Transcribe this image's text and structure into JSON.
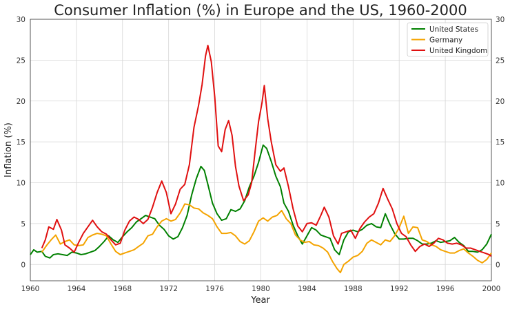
{
  "chart_data": {
    "type": "line",
    "title": "Consumer Inflation (%) in Europe and the US, 1960-2000",
    "xlabel": "Year",
    "ylabel": "Inflation (%)",
    "xlim": [
      1960,
      2000
    ],
    "ylim": [
      -2,
      30
    ],
    "xticks": [
      1960,
      1964,
      1968,
      1972,
      1976,
      1980,
      1984,
      1988,
      1992,
      1996,
      2000
    ],
    "yticks": [
      0,
      5,
      10,
      15,
      20,
      25,
      30
    ],
    "grid": true,
    "right_axis_labels": true,
    "legend_position": "top-right",
    "series": [
      {
        "name": "United States",
        "color": "#008000",
        "points": [
          [
            1960.0,
            1.2
          ],
          [
            1960.3,
            1.8
          ],
          [
            1960.6,
            1.5
          ],
          [
            1961.0,
            1.6
          ],
          [
            1961.3,
            1.0
          ],
          [
            1961.7,
            0.8
          ],
          [
            1962.0,
            1.2
          ],
          [
            1962.4,
            1.3
          ],
          [
            1962.8,
            1.2
          ],
          [
            1963.2,
            1.1
          ],
          [
            1963.6,
            1.5
          ],
          [
            1964.0,
            1.4
          ],
          [
            1964.4,
            1.2
          ],
          [
            1964.8,
            1.3
          ],
          [
            1965.2,
            1.5
          ],
          [
            1965.6,
            1.7
          ],
          [
            1966.0,
            2.2
          ],
          [
            1966.4,
            2.8
          ],
          [
            1966.8,
            3.5
          ],
          [
            1967.2,
            3.0
          ],
          [
            1967.6,
            2.7
          ],
          [
            1968.0,
            3.4
          ],
          [
            1968.4,
            4.0
          ],
          [
            1968.8,
            4.5
          ],
          [
            1969.2,
            5.2
          ],
          [
            1969.6,
            5.6
          ],
          [
            1970.0,
            6.0
          ],
          [
            1970.4,
            5.8
          ],
          [
            1970.8,
            5.6
          ],
          [
            1971.2,
            4.8
          ],
          [
            1971.6,
            4.3
          ],
          [
            1972.0,
            3.5
          ],
          [
            1972.4,
            3.1
          ],
          [
            1972.8,
            3.4
          ],
          [
            1973.2,
            4.5
          ],
          [
            1973.6,
            6.0
          ],
          [
            1974.0,
            8.5
          ],
          [
            1974.4,
            10.5
          ],
          [
            1974.8,
            12.0
          ],
          [
            1975.1,
            11.5
          ],
          [
            1975.4,
            9.8
          ],
          [
            1975.8,
            7.5
          ],
          [
            1976.2,
            6.2
          ],
          [
            1976.6,
            5.4
          ],
          [
            1977.0,
            5.6
          ],
          [
            1977.4,
            6.7
          ],
          [
            1977.8,
            6.5
          ],
          [
            1978.2,
            6.8
          ],
          [
            1978.6,
            7.8
          ],
          [
            1979.0,
            9.5
          ],
          [
            1979.4,
            10.8
          ],
          [
            1979.8,
            12.5
          ],
          [
            1980.2,
            14.6
          ],
          [
            1980.5,
            14.2
          ],
          [
            1980.9,
            12.6
          ],
          [
            1981.3,
            10.8
          ],
          [
            1981.7,
            9.5
          ],
          [
            1982.0,
            7.5
          ],
          [
            1982.4,
            6.5
          ],
          [
            1982.8,
            4.8
          ],
          [
            1983.2,
            3.5
          ],
          [
            1983.6,
            2.5
          ],
          [
            1984.0,
            3.5
          ],
          [
            1984.4,
            4.5
          ],
          [
            1984.8,
            4.2
          ],
          [
            1985.2,
            3.6
          ],
          [
            1985.6,
            3.4
          ],
          [
            1986.0,
            3.2
          ],
          [
            1986.4,
            1.8
          ],
          [
            1986.8,
            1.2
          ],
          [
            1987.2,
            3.0
          ],
          [
            1987.6,
            4.0
          ],
          [
            1988.0,
            4.2
          ],
          [
            1988.4,
            4.0
          ],
          [
            1988.8,
            4.3
          ],
          [
            1989.2,
            4.8
          ],
          [
            1989.6,
            5.0
          ],
          [
            1990.0,
            4.6
          ],
          [
            1990.4,
            4.5
          ],
          [
            1990.8,
            6.2
          ],
          [
            1991.2,
            4.9
          ],
          [
            1991.6,
            3.8
          ],
          [
            1992.0,
            3.1
          ],
          [
            1992.4,
            3.1
          ],
          [
            1992.8,
            3.2
          ],
          [
            1993.2,
            3.2
          ],
          [
            1993.6,
            2.9
          ],
          [
            1994.0,
            2.5
          ],
          [
            1994.4,
            2.5
          ],
          [
            1994.8,
            2.6
          ],
          [
            1995.2,
            2.9
          ],
          [
            1995.6,
            2.7
          ],
          [
            1996.0,
            2.8
          ],
          [
            1996.4,
            2.9
          ],
          [
            1996.8,
            3.3
          ],
          [
            1997.2,
            2.7
          ],
          [
            1997.6,
            2.3
          ],
          [
            1998.0,
            1.6
          ],
          [
            1998.4,
            1.6
          ],
          [
            1998.8,
            1.5
          ],
          [
            1999.2,
            1.8
          ],
          [
            1999.6,
            2.5
          ],
          [
            2000.0,
            3.7
          ]
        ]
      },
      {
        "name": "Germany",
        "color": "#f4a300",
        "points": [
          [
            1961.0,
            1.5
          ],
          [
            1961.4,
            2.3
          ],
          [
            1961.8,
            3.0
          ],
          [
            1962.2,
            3.6
          ],
          [
            1962.6,
            2.5
          ],
          [
            1963.0,
            2.8
          ],
          [
            1963.4,
            3.0
          ],
          [
            1963.8,
            2.4
          ],
          [
            1964.2,
            2.3
          ],
          [
            1964.6,
            2.4
          ],
          [
            1965.0,
            3.3
          ],
          [
            1965.4,
            3.6
          ],
          [
            1965.8,
            3.8
          ],
          [
            1966.2,
            3.7
          ],
          [
            1966.6,
            3.5
          ],
          [
            1967.0,
            2.5
          ],
          [
            1967.4,
            1.6
          ],
          [
            1967.8,
            1.2
          ],
          [
            1968.2,
            1.4
          ],
          [
            1968.6,
            1.6
          ],
          [
            1969.0,
            1.8
          ],
          [
            1969.4,
            2.2
          ],
          [
            1969.8,
            2.6
          ],
          [
            1970.2,
            3.5
          ],
          [
            1970.6,
            3.7
          ],
          [
            1971.0,
            4.6
          ],
          [
            1971.4,
            5.3
          ],
          [
            1971.8,
            5.6
          ],
          [
            1972.2,
            5.3
          ],
          [
            1972.6,
            5.5
          ],
          [
            1973.0,
            6.3
          ],
          [
            1973.4,
            7.4
          ],
          [
            1973.8,
            7.3
          ],
          [
            1974.2,
            6.9
          ],
          [
            1974.6,
            6.8
          ],
          [
            1975.0,
            6.3
          ],
          [
            1975.4,
            6.0
          ],
          [
            1975.8,
            5.6
          ],
          [
            1976.2,
            4.6
          ],
          [
            1976.6,
            3.8
          ],
          [
            1977.0,
            3.8
          ],
          [
            1977.4,
            3.9
          ],
          [
            1977.8,
            3.5
          ],
          [
            1978.2,
            2.8
          ],
          [
            1978.6,
            2.5
          ],
          [
            1979.0,
            2.9
          ],
          [
            1979.4,
            4.0
          ],
          [
            1979.8,
            5.3
          ],
          [
            1980.2,
            5.7
          ],
          [
            1980.6,
            5.3
          ],
          [
            1981.0,
            5.8
          ],
          [
            1981.4,
            6.0
          ],
          [
            1981.8,
            6.6
          ],
          [
            1982.2,
            5.6
          ],
          [
            1982.6,
            5.0
          ],
          [
            1983.0,
            3.6
          ],
          [
            1983.4,
            3.0
          ],
          [
            1983.8,
            2.7
          ],
          [
            1984.2,
            2.8
          ],
          [
            1984.6,
            2.4
          ],
          [
            1985.0,
            2.3
          ],
          [
            1985.4,
            2.0
          ],
          [
            1985.8,
            1.5
          ],
          [
            1986.2,
            0.4
          ],
          [
            1986.6,
            -0.5
          ],
          [
            1986.9,
            -1.0
          ],
          [
            1987.2,
            0.0
          ],
          [
            1987.6,
            0.4
          ],
          [
            1988.0,
            0.9
          ],
          [
            1988.4,
            1.1
          ],
          [
            1988.8,
            1.6
          ],
          [
            1989.2,
            2.6
          ],
          [
            1989.6,
            3.0
          ],
          [
            1990.0,
            2.7
          ],
          [
            1990.4,
            2.4
          ],
          [
            1990.8,
            3.0
          ],
          [
            1991.2,
            2.8
          ],
          [
            1991.6,
            3.5
          ],
          [
            1992.0,
            4.5
          ],
          [
            1992.4,
            5.9
          ],
          [
            1992.8,
            3.8
          ],
          [
            1993.2,
            4.6
          ],
          [
            1993.6,
            4.5
          ],
          [
            1994.0,
            3.0
          ],
          [
            1994.4,
            2.8
          ],
          [
            1994.8,
            2.4
          ],
          [
            1995.2,
            2.2
          ],
          [
            1995.6,
            1.8
          ],
          [
            1996.0,
            1.6
          ],
          [
            1996.4,
            1.4
          ],
          [
            1996.8,
            1.4
          ],
          [
            1997.2,
            1.7
          ],
          [
            1997.6,
            1.9
          ],
          [
            1998.0,
            1.4
          ],
          [
            1998.4,
            1.0
          ],
          [
            1998.8,
            0.5
          ],
          [
            1999.2,
            0.2
          ],
          [
            1999.6,
            0.6
          ],
          [
            2000.0,
            1.4
          ]
        ]
      },
      {
        "name": "United Kingdom",
        "color": "#e01010",
        "points": [
          [
            1961.0,
            2.0
          ],
          [
            1961.3,
            3.0
          ],
          [
            1961.6,
            4.6
          ],
          [
            1962.0,
            4.3
          ],
          [
            1962.3,
            5.5
          ],
          [
            1962.7,
            4.2
          ],
          [
            1963.0,
            2.4
          ],
          [
            1963.4,
            2.0
          ],
          [
            1963.8,
            1.5
          ],
          [
            1964.2,
            2.7
          ],
          [
            1964.6,
            3.8
          ],
          [
            1965.0,
            4.6
          ],
          [
            1965.4,
            5.4
          ],
          [
            1965.8,
            4.6
          ],
          [
            1966.2,
            4.0
          ],
          [
            1966.6,
            3.7
          ],
          [
            1967.0,
            3.0
          ],
          [
            1967.4,
            2.4
          ],
          [
            1967.8,
            2.6
          ],
          [
            1968.2,
            4.2
          ],
          [
            1968.6,
            5.3
          ],
          [
            1969.0,
            5.8
          ],
          [
            1969.4,
            5.5
          ],
          [
            1969.8,
            5.0
          ],
          [
            1970.2,
            5.5
          ],
          [
            1970.6,
            7.0
          ],
          [
            1971.0,
            8.8
          ],
          [
            1971.4,
            10.2
          ],
          [
            1971.8,
            8.8
          ],
          [
            1972.2,
            6.2
          ],
          [
            1972.6,
            7.4
          ],
          [
            1973.0,
            9.2
          ],
          [
            1973.4,
            9.8
          ],
          [
            1973.8,
            12.2
          ],
          [
            1974.2,
            16.8
          ],
          [
            1974.6,
            19.5
          ],
          [
            1974.9,
            22.0
          ],
          [
            1975.2,
            25.5
          ],
          [
            1975.4,
            26.8
          ],
          [
            1975.7,
            24.8
          ],
          [
            1976.0,
            20.5
          ],
          [
            1976.3,
            14.5
          ],
          [
            1976.6,
            13.8
          ],
          [
            1976.9,
            16.5
          ],
          [
            1977.2,
            17.6
          ],
          [
            1977.5,
            15.8
          ],
          [
            1977.8,
            12.0
          ],
          [
            1978.1,
            9.6
          ],
          [
            1978.5,
            7.8
          ],
          [
            1978.9,
            8.5
          ],
          [
            1979.2,
            10.0
          ],
          [
            1979.5,
            13.8
          ],
          [
            1979.8,
            17.5
          ],
          [
            1980.1,
            19.8
          ],
          [
            1980.3,
            21.9
          ],
          [
            1980.6,
            17.8
          ],
          [
            1980.9,
            15.0
          ],
          [
            1981.3,
            12.2
          ],
          [
            1981.7,
            11.4
          ],
          [
            1982.0,
            11.8
          ],
          [
            1982.4,
            9.5
          ],
          [
            1982.8,
            6.8
          ],
          [
            1983.2,
            4.7
          ],
          [
            1983.6,
            4.0
          ],
          [
            1984.0,
            5.0
          ],
          [
            1984.4,
            5.1
          ],
          [
            1984.8,
            4.8
          ],
          [
            1985.2,
            6.0
          ],
          [
            1985.5,
            7.0
          ],
          [
            1985.9,
            5.8
          ],
          [
            1986.3,
            3.5
          ],
          [
            1986.7,
            2.5
          ],
          [
            1987.0,
            3.8
          ],
          [
            1987.4,
            4.0
          ],
          [
            1987.8,
            4.2
          ],
          [
            1988.2,
            3.2
          ],
          [
            1988.6,
            4.4
          ],
          [
            1989.0,
            5.2
          ],
          [
            1989.4,
            5.8
          ],
          [
            1989.8,
            6.2
          ],
          [
            1990.2,
            7.5
          ],
          [
            1990.6,
            9.3
          ],
          [
            1991.0,
            8.0
          ],
          [
            1991.4,
            6.8
          ],
          [
            1991.8,
            5.0
          ],
          [
            1992.2,
            3.8
          ],
          [
            1992.6,
            3.4
          ],
          [
            1993.0,
            2.4
          ],
          [
            1993.4,
            1.6
          ],
          [
            1993.8,
            2.2
          ],
          [
            1994.2,
            2.5
          ],
          [
            1994.6,
            2.2
          ],
          [
            1995.0,
            2.6
          ],
          [
            1995.4,
            3.2
          ],
          [
            1995.8,
            3.0
          ],
          [
            1996.2,
            2.6
          ],
          [
            1996.6,
            2.5
          ],
          [
            1997.0,
            2.6
          ],
          [
            1997.4,
            2.4
          ],
          [
            1997.8,
            2.0
          ],
          [
            1998.2,
            2.0
          ],
          [
            1998.6,
            1.8
          ],
          [
            1999.0,
            1.6
          ],
          [
            1999.4,
            1.4
          ],
          [
            1999.8,
            1.2
          ],
          [
            2000.0,
            1.0
          ]
        ]
      }
    ]
  }
}
